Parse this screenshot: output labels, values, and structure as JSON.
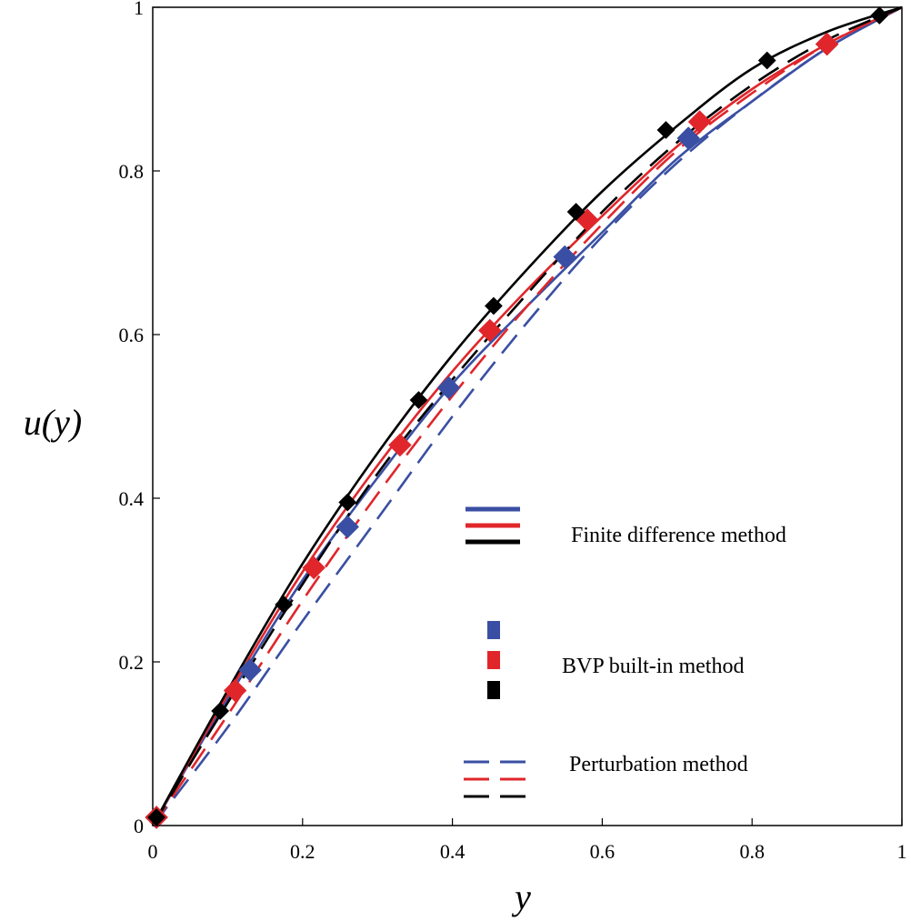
{
  "chart_data": {
    "type": "line",
    "title": "",
    "xlabel": "y",
    "ylabel": "u(y)",
    "xlim": [
      0,
      1
    ],
    "ylim": [
      0,
      1
    ],
    "grid": false,
    "legend_position": "lower-right",
    "colors": {
      "blue": "#3a4fa3",
      "red": "#e0262b",
      "black": "#000000"
    },
    "x_ticks": [
      {
        "value": 0,
        "label": "0"
      },
      {
        "value": 0.2,
        "label": "0.2"
      },
      {
        "value": 0.4,
        "label": "0.4"
      },
      {
        "value": 0.6,
        "label": "0.6"
      },
      {
        "value": 0.8,
        "label": "0.8"
      },
      {
        "value": 1,
        "label": "1"
      }
    ],
    "y_ticks": [
      {
        "value": 0,
        "label": "0"
      },
      {
        "value": 0.2,
        "label": "0.2"
      },
      {
        "value": 0.4,
        "label": "0.4"
      },
      {
        "value": 0.6,
        "label": "0.6"
      },
      {
        "value": 0.8,
        "label": "0.8"
      },
      {
        "value": 1,
        "label": "1"
      }
    ],
    "legend": [
      {
        "label": "Finite difference method",
        "style": "solid"
      },
      {
        "label": "BVP built-in method",
        "style": "marker"
      },
      {
        "label": "Perturbation method",
        "style": "dashed"
      }
    ],
    "series": [
      {
        "name": "Finite difference method (blue)",
        "color": "blue",
        "style": "solid",
        "x": [
          0,
          0.1,
          0.2,
          0.3,
          0.4,
          0.5,
          0.6,
          0.7,
          0.8,
          0.9,
          1.0
        ],
        "y": [
          0,
          0.155,
          0.3,
          0.425,
          0.54,
          0.635,
          0.725,
          0.815,
          0.885,
          0.95,
          1.0
        ]
      },
      {
        "name": "Finite difference method (red)",
        "color": "red",
        "style": "solid",
        "x": [
          0,
          0.1,
          0.2,
          0.3,
          0.4,
          0.5,
          0.6,
          0.7,
          0.8,
          0.9,
          1.0
        ],
        "y": [
          0,
          0.16,
          0.31,
          0.44,
          0.555,
          0.655,
          0.745,
          0.83,
          0.9,
          0.955,
          1.0
        ]
      },
      {
        "name": "Finite difference method (black)",
        "color": "black",
        "style": "solid",
        "x": [
          0,
          0.1,
          0.2,
          0.3,
          0.4,
          0.5,
          0.6,
          0.7,
          0.8,
          0.9,
          1.0
        ],
        "y": [
          0,
          0.165,
          0.32,
          0.455,
          0.575,
          0.68,
          0.775,
          0.855,
          0.925,
          0.97,
          1.0
        ]
      },
      {
        "name": "Perturbation method (blue)",
        "color": "blue",
        "style": "dashed",
        "x": [
          0,
          0.1,
          0.2,
          0.3,
          0.4,
          0.5,
          0.6,
          0.7,
          0.8,
          0.9,
          1.0
        ],
        "y": [
          0,
          0.12,
          0.25,
          0.375,
          0.5,
          0.615,
          0.72,
          0.81,
          0.885,
          0.95,
          1.0
        ]
      },
      {
        "name": "Perturbation method (red)",
        "color": "red",
        "style": "dashed",
        "x": [
          0,
          0.1,
          0.2,
          0.3,
          0.4,
          0.5,
          0.6,
          0.7,
          0.8,
          0.9,
          1.0
        ],
        "y": [
          0,
          0.135,
          0.275,
          0.405,
          0.525,
          0.635,
          0.735,
          0.825,
          0.895,
          0.955,
          1.0
        ]
      },
      {
        "name": "Perturbation method (black)",
        "color": "black",
        "style": "dashed",
        "x": [
          0,
          0.1,
          0.2,
          0.3,
          0.4,
          0.5,
          0.6,
          0.7,
          0.8,
          0.9,
          1.0
        ],
        "y": [
          0,
          0.15,
          0.295,
          0.43,
          0.545,
          0.65,
          0.75,
          0.835,
          0.905,
          0.96,
          1.0
        ]
      },
      {
        "name": "BVP built-in method (blue)",
        "color": "blue",
        "style": "marker",
        "x": [
          0.005,
          0.13,
          0.26,
          0.395,
          0.55,
          0.715,
          0.9
        ],
        "y": [
          0.01,
          0.19,
          0.365,
          0.535,
          0.695,
          0.84,
          0.955
        ]
      },
      {
        "name": "BVP built-in method (red)",
        "color": "red",
        "style": "marker",
        "x": [
          0.005,
          0.11,
          0.215,
          0.33,
          0.45,
          0.58,
          0.73,
          0.9
        ],
        "y": [
          0.01,
          0.165,
          0.315,
          0.465,
          0.605,
          0.74,
          0.86,
          0.955
        ]
      },
      {
        "name": "BVP built-in method (black)",
        "color": "black",
        "style": "marker",
        "x": [
          0.005,
          0.09,
          0.175,
          0.26,
          0.355,
          0.455,
          0.565,
          0.685,
          0.82,
          0.97
        ],
        "y": [
          0.01,
          0.14,
          0.27,
          0.395,
          0.52,
          0.635,
          0.75,
          0.85,
          0.935,
          0.99
        ]
      }
    ]
  }
}
